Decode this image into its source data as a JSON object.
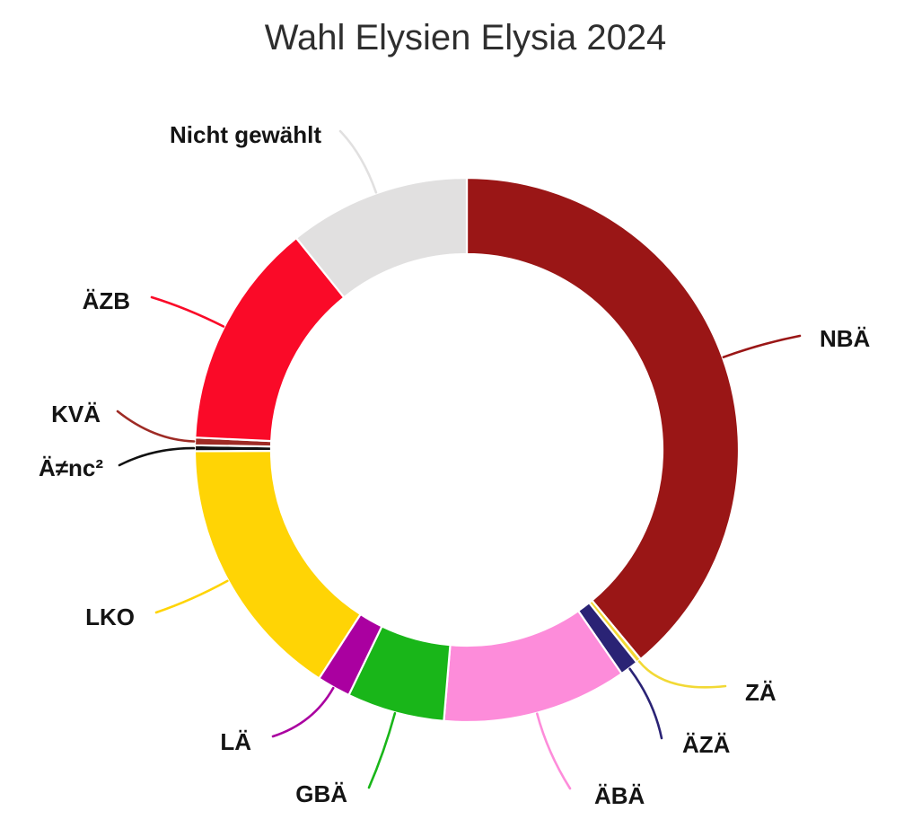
{
  "page": {
    "background": "#ffffff"
  },
  "chart_data": {
    "type": "pie",
    "variant": "donut",
    "title": "Wahl Elysien Elysia 2024",
    "legend_position": "none",
    "label_style": "outside-with-leader-lines",
    "start_angle_deg": 0,
    "direction": "clockwise",
    "slices": [
      {
        "label": "NBÄ",
        "value": 39.0,
        "color": "#9A1616"
      },
      {
        "label": "ZÄ",
        "value": 0.3,
        "color": "#F2D935"
      },
      {
        "label": "ÄZÄ",
        "value": 1.1,
        "color": "#2A2375"
      },
      {
        "label": "ÄBÄ",
        "value": 11.0,
        "color": "#FD8CDA"
      },
      {
        "label": "GBÄ",
        "value": 5.8,
        "color": "#19B619"
      },
      {
        "label": "LÄ",
        "value": 2.0,
        "color": "#AA00A0"
      },
      {
        "label": "LKO",
        "value": 15.8,
        "color": "#FFD405"
      },
      {
        "label": "Ä≠nc²",
        "value": 0.35,
        "color": "#111111"
      },
      {
        "label": "KVÄ",
        "value": 0.45,
        "color": "#9E2B25"
      },
      {
        "label": "ÄZB",
        "value": 13.5,
        "color": "#FA0A28"
      },
      {
        "label": "Nicht gewählt",
        "value": 10.8,
        "color": "#E1E0E0"
      }
    ]
  }
}
